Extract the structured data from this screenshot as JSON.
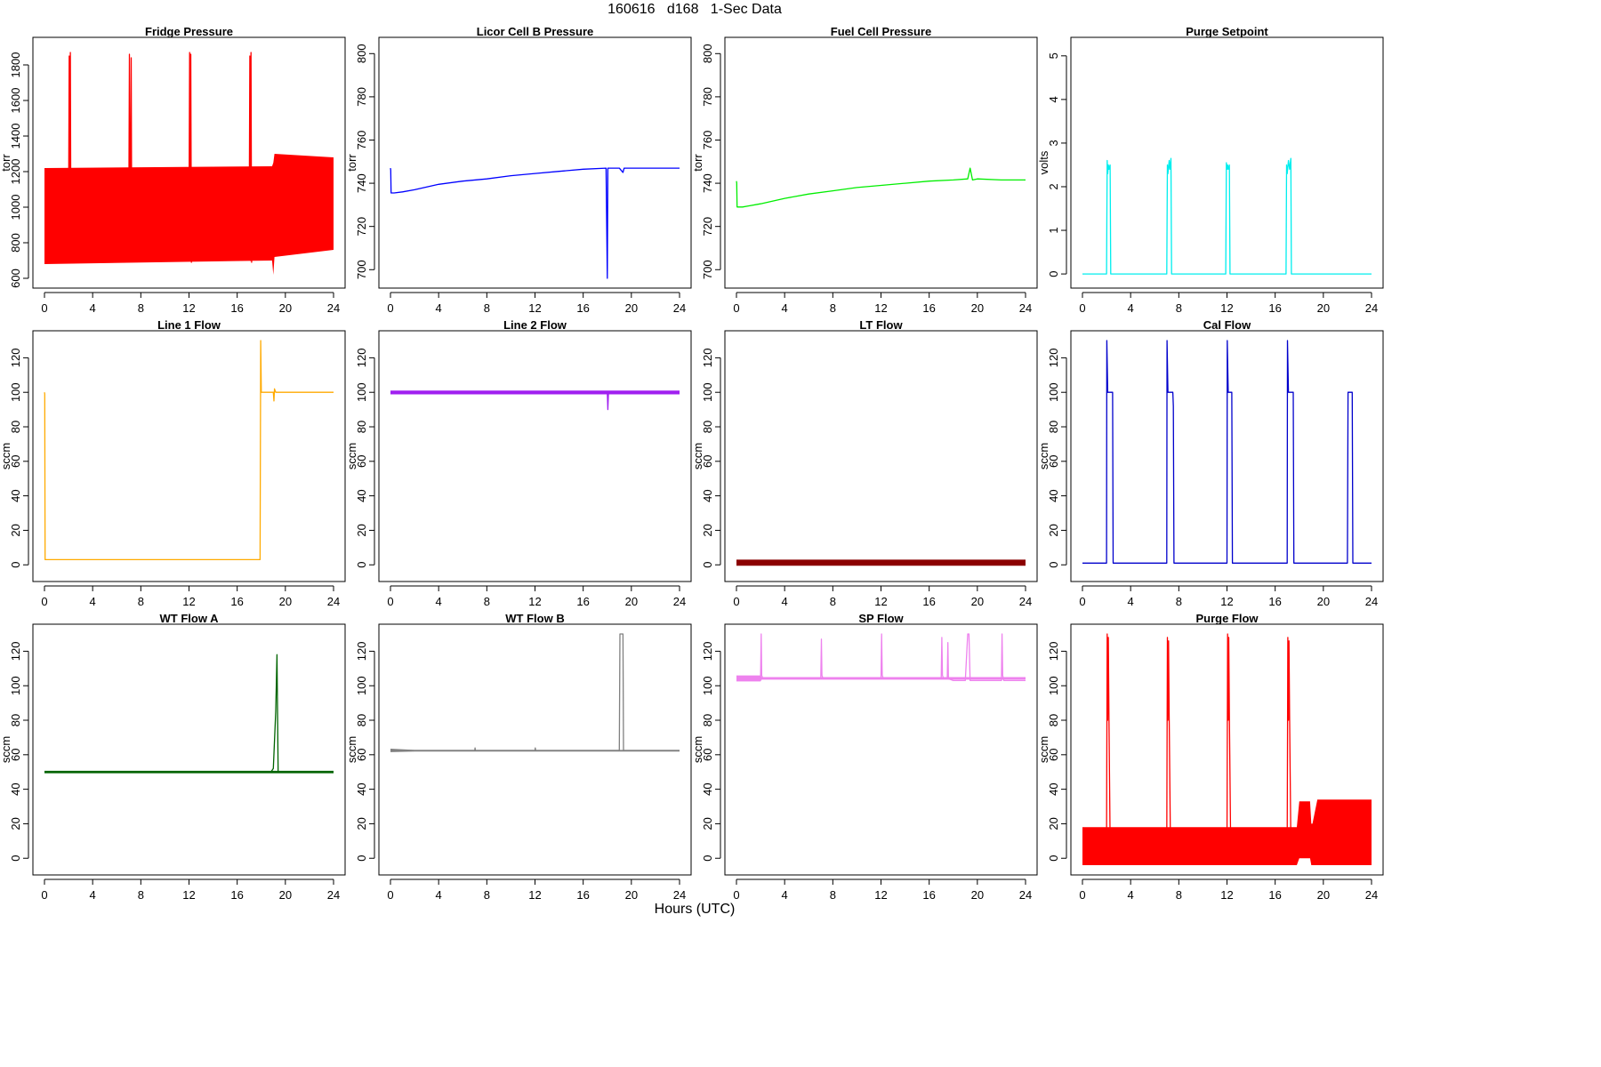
{
  "header": {
    "title": "160616   d168   1-Sec Data"
  },
  "xaxis": {
    "label": "Hours (UTC)"
  },
  "chart_data": [
    {
      "type": "line",
      "title": "Fridge Pressure",
      "ylabel": "torr",
      "color": "#ff0000",
      "xlim": [
        0,
        24
      ],
      "ylim": [
        600,
        1900
      ],
      "xticks": [
        0,
        4,
        8,
        12,
        16,
        20,
        24
      ],
      "yticks": [
        600,
        800,
        1000,
        1200,
        1400,
        1600,
        1800
      ],
      "band": {
        "x": [
          0.0,
          18.9,
          19.0,
          19.1,
          24.0
        ],
        "low": [
          680,
          700,
          620,
          720,
          760
        ],
        "high": [
          1220,
          1230,
          1250,
          1300,
          1280
        ]
      },
      "series": [
        {
          "x": [
            0,
            2.0,
            2.05,
            2.1,
            2.15,
            2.2,
            2.3,
            7.0,
            7.05,
            7.15,
            7.2,
            7.25,
            7.35,
            12.0,
            12.05,
            12.1,
            12.15,
            12.2,
            12.3,
            17.0,
            17.05,
            17.1,
            17.15,
            17.2,
            17.3,
            18.5,
            19.0,
            19.3,
            24
          ],
          "y": [
            950,
            950,
            1850,
            700,
            1870,
            690,
            950,
            950,
            1860,
            700,
            1840,
            700,
            950,
            950,
            1870,
            700,
            1860,
            690,
            950,
            950,
            1850,
            700,
            1870,
            690,
            950,
            950,
            800,
            1000,
            1000
          ]
        }
      ]
    },
    {
      "type": "line",
      "title": "Licor Cell B Pressure",
      "ylabel": "torr",
      "color": "#0000ff",
      "xlim": [
        0,
        24
      ],
      "ylim": [
        696,
        803
      ],
      "xticks": [
        0,
        4,
        8,
        12,
        16,
        20,
        24
      ],
      "yticks": [
        700,
        720,
        740,
        760,
        780,
        800
      ],
      "series": [
        {
          "x": [
            0,
            0.02,
            0.05,
            0.3,
            1,
            2,
            4,
            6,
            8,
            10,
            12,
            14,
            16,
            17.9,
            18,
            18.05,
            18.1,
            19,
            19.3,
            19.4,
            20,
            22,
            24
          ],
          "y": [
            747,
            746,
            735.5,
            735.5,
            736,
            737,
            739.5,
            741,
            742,
            743.5,
            744.5,
            745.5,
            746.5,
            747,
            696,
            747,
            747,
            747,
            745,
            747,
            747,
            747,
            747
          ]
        }
      ]
    },
    {
      "type": "line",
      "title": "Fuel Cell Pressure",
      "ylabel": "torr",
      "color": "#00ee00",
      "xlim": [
        0,
        24
      ],
      "ylim": [
        696,
        803
      ],
      "xticks": [
        0,
        4,
        8,
        12,
        16,
        20,
        24
      ],
      "yticks": [
        700,
        720,
        740,
        760,
        780,
        800
      ],
      "series": [
        {
          "x": [
            0,
            0.02,
            0.05,
            0.5,
            1,
            2,
            4,
            6,
            8,
            10,
            12,
            14,
            16,
            18,
            19.2,
            19.4,
            19.6,
            20,
            22,
            24
          ],
          "y": [
            741,
            740,
            729,
            729,
            729.5,
            730.5,
            733,
            735,
            736.5,
            738,
            739,
            740,
            741,
            741.5,
            742,
            747,
            741.5,
            742,
            741.5,
            741.5
          ]
        }
      ]
    },
    {
      "type": "line",
      "title": "Purge Setpoint",
      "ylabel": "volts",
      "color": "#00eeee",
      "xlim": [
        0,
        24
      ],
      "ylim": [
        -0.1,
        5.2
      ],
      "xticks": [
        0,
        4,
        8,
        12,
        16,
        20,
        24
      ],
      "yticks": [
        0,
        1,
        2,
        3,
        4,
        5
      ],
      "series": [
        {
          "x": [
            0,
            2.0,
            2.05,
            2.1,
            2.15,
            2.2,
            2.3,
            2.35,
            7.0,
            7.05,
            7.1,
            7.2,
            7.25,
            7.35,
            7.4,
            11.9,
            11.95,
            12.0,
            12.05,
            12.1,
            12.2,
            12.25,
            16.9,
            16.95,
            17.0,
            17.1,
            17.2,
            17.3,
            17.35,
            24
          ],
          "y": [
            0,
            0,
            2.6,
            2.3,
            2.5,
            2.4,
            2.5,
            0,
            0,
            2.5,
            2.3,
            2.6,
            2.4,
            2.65,
            0,
            0,
            2.55,
            2.4,
            2.5,
            2.4,
            2.5,
            0,
            0,
            2.5,
            2.3,
            2.6,
            2.4,
            2.65,
            0,
            0
          ]
        }
      ]
    },
    {
      "type": "line",
      "title": "Line 1 Flow",
      "ylabel": "sccm",
      "color": "#ffaa00",
      "xlim": [
        0,
        24
      ],
      "ylim": [
        -4,
        130
      ],
      "xticks": [
        0,
        4,
        8,
        12,
        16,
        20,
        24
      ],
      "yticks": [
        0,
        20,
        40,
        60,
        80,
        100,
        120
      ],
      "series": [
        {
          "x": [
            0,
            0.02,
            0.05,
            8,
            17.9,
            17.95,
            18.0,
            18.05,
            19.0,
            19.05,
            19.1,
            19.2,
            24
          ],
          "y": [
            100,
            99,
            3,
            3,
            3,
            130,
            100,
            100,
            100,
            95,
            102,
            100,
            100
          ]
        }
      ]
    },
    {
      "type": "line",
      "title": "Line 2 Flow",
      "ylabel": "sccm",
      "color": "#a020f0",
      "xlim": [
        0,
        24
      ],
      "ylim": [
        -4,
        130
      ],
      "xticks": [
        0,
        4,
        8,
        12,
        16,
        20,
        24
      ],
      "yticks": [
        0,
        20,
        40,
        60,
        80,
        100,
        120
      ],
      "band": {
        "x": [
          0,
          19,
          19.1,
          24
        ],
        "low": [
          98.8,
          98.8,
          98.8,
          98.8
        ],
        "high": [
          101,
          101,
          101,
          101
        ]
      },
      "series": [
        {
          "x": [
            0,
            18.0,
            18.05,
            18.1,
            18.15,
            24
          ],
          "y": [
            100,
            100,
            90,
            100,
            100,
            100
          ]
        }
      ]
    },
    {
      "type": "line",
      "title": "LT Flow",
      "ylabel": "sccm",
      "color": "#8b0000",
      "xlim": [
        0,
        24
      ],
      "ylim": [
        -4,
        130
      ],
      "xticks": [
        0,
        4,
        8,
        12,
        16,
        20,
        24
      ],
      "yticks": [
        0,
        20,
        40,
        60,
        80,
        100,
        120
      ],
      "band": {
        "x": [
          0,
          24
        ],
        "low": [
          -0.5,
          -0.5
        ],
        "high": [
          3,
          3
        ]
      },
      "series": [
        {
          "x": [
            0,
            24
          ],
          "y": [
            1,
            1
          ]
        }
      ]
    },
    {
      "type": "line",
      "title": "Cal Flow",
      "ylabel": "sccm",
      "color": "#0000cc",
      "xlim": [
        0,
        24
      ],
      "ylim": [
        -4,
        130
      ],
      "xticks": [
        0,
        4,
        8,
        12,
        16,
        20,
        24
      ],
      "yticks": [
        0,
        20,
        40,
        60,
        80,
        100,
        120
      ],
      "series": [
        {
          "x": [
            0,
            2.0,
            2.02,
            2.1,
            2.5,
            2.55,
            7.0,
            7.02,
            7.1,
            7.5,
            7.55,
            7.6,
            12.0,
            12.02,
            12.1,
            12.4,
            12.45,
            17.0,
            17.02,
            17.1,
            17.5,
            17.55,
            22.0,
            22.05,
            22.4,
            22.45,
            24
          ],
          "y": [
            1,
            1,
            130,
            100,
            100,
            1,
            1,
            130,
            100,
            100,
            92,
            1,
            1,
            130,
            100,
            100,
            1,
            1,
            130,
            100,
            100,
            1,
            1,
            100,
            100,
            1,
            1
          ]
        }
      ]
    },
    {
      "type": "line",
      "title": "WT Flow A",
      "ylabel": "sccm",
      "color": "#006400",
      "xlim": [
        0,
        24
      ],
      "ylim": [
        -4,
        130
      ],
      "xticks": [
        0,
        4,
        8,
        12,
        16,
        20,
        24
      ],
      "yticks": [
        0,
        20,
        40,
        60,
        80,
        100,
        120
      ],
      "band": {
        "x": [
          0,
          24
        ],
        "low": [
          49.3,
          49.3
        ],
        "high": [
          50.7,
          50.7
        ]
      },
      "series": [
        {
          "x": [
            0,
            18.8,
            19.0,
            19.2,
            19.3,
            19.4,
            19.5,
            24
          ],
          "y": [
            50,
            50,
            52,
            85,
            118,
            50,
            50,
            50
          ]
        }
      ]
    },
    {
      "type": "line",
      "title": "WT Flow B",
      "ylabel": "sccm",
      "color": "#808080",
      "xlim": [
        0,
        24
      ],
      "ylim": [
        -4,
        130
      ],
      "xticks": [
        0,
        4,
        8,
        12,
        16,
        20,
        24
      ],
      "yticks": [
        0,
        20,
        40,
        60,
        80,
        100,
        120
      ],
      "band": {
        "x": [
          0,
          2,
          24
        ],
        "low": [
          61.5,
          61.8,
          61.8
        ],
        "high": [
          63.5,
          62.8,
          62.8
        ]
      },
      "series": [
        {
          "x": [
            0,
            7.0,
            7.02,
            7.05,
            12.0,
            12.02,
            12.05,
            19.0,
            19.05,
            19.3,
            19.35,
            24
          ],
          "y": [
            62.5,
            62.5,
            64,
            62.5,
            62.5,
            64,
            62.5,
            62.5,
            130,
            130,
            62.5,
            62.5
          ]
        }
      ]
    },
    {
      "type": "line",
      "title": "SP Flow",
      "ylabel": "sccm",
      "color": "#ee82ee",
      "xlim": [
        0,
        24
      ],
      "ylim": [
        -4,
        130
      ],
      "xticks": [
        0,
        4,
        8,
        12,
        16,
        20,
        24
      ],
      "yticks": [
        0,
        20,
        40,
        60,
        80,
        100,
        120
      ],
      "band": {
        "x": [
          0,
          2,
          2.1,
          24
        ],
        "low": [
          102.5,
          102.5,
          103.5,
          103.5
        ],
        "high": [
          106,
          106,
          105,
          105
        ]
      },
      "series": [
        {
          "x": [
            0,
            2.0,
            2.05,
            2.1,
            2.2,
            7.0,
            7.05,
            7.1,
            7.2,
            12.0,
            12.05,
            12.1,
            12.2,
            17.0,
            17.05,
            17.1,
            17.2,
            17.5,
            17.55,
            17.6,
            18.0,
            18.5,
            19.0,
            19.2,
            19.3,
            19.4,
            22.0,
            22.05,
            22.1,
            22.2,
            24
          ],
          "y": [
            104,
            104,
            130,
            106,
            104,
            104,
            127,
            106,
            104,
            104,
            130,
            106,
            104,
            104,
            128,
            106,
            104,
            104,
            125,
            104,
            103,
            103,
            103,
            130,
            130,
            103,
            103,
            130,
            106,
            103,
            103
          ]
        }
      ]
    },
    {
      "type": "line",
      "title": "Purge Flow",
      "ylabel": "sccm",
      "color": "#ff0000",
      "xlim": [
        0,
        24
      ],
      "ylim": [
        -4,
        130
      ],
      "xticks": [
        0,
        4,
        8,
        12,
        16,
        20,
        24
      ],
      "yticks": [
        0,
        20,
        40,
        60,
        80,
        100,
        120
      ],
      "band": {
        "x": [
          0,
          17.0,
          17.8,
          18.0,
          18.9,
          19.0,
          19.1,
          19.5,
          24
        ],
        "low": [
          -4,
          -4,
          -4,
          0,
          0,
          -4,
          -4,
          -4,
          -4
        ],
        "high": [
          18,
          18,
          18,
          33,
          33,
          20,
          20,
          34,
          34
        ]
      },
      "series": [
        {
          "x": [
            0,
            2.0,
            2.05,
            2.1,
            2.15,
            2.2,
            2.3,
            7.0,
            7.05,
            7.1,
            7.15,
            7.2,
            7.3,
            12.0,
            12.05,
            12.1,
            12.15,
            12.2,
            12.3,
            17.0,
            17.05,
            17.1,
            17.15,
            17.2,
            17.3,
            24
          ],
          "y": [
            10,
            10,
            130,
            80,
            128,
            82,
            10,
            10,
            128,
            80,
            126,
            82,
            10,
            10,
            130,
            80,
            128,
            82,
            10,
            10,
            128,
            80,
            126,
            82,
            10,
            10
          ]
        }
      ]
    }
  ]
}
